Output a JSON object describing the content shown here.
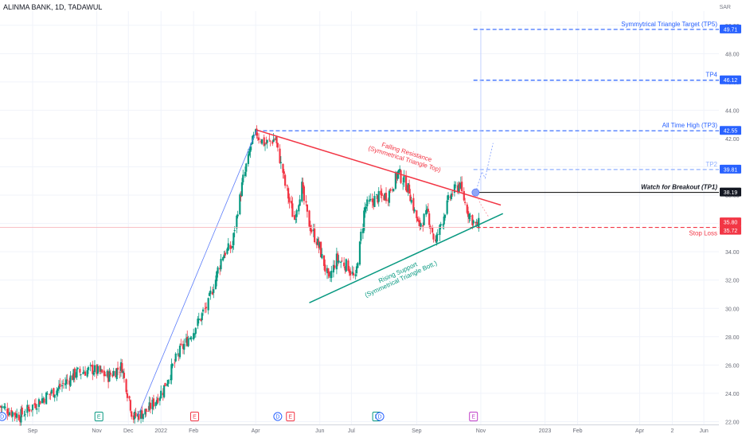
{
  "header": {
    "symbol": "ALINMA BANK, 1D, TADAWUL",
    "currency": "SAR"
  },
  "chart_data": {
    "type": "candlestick",
    "symbol": "ALINMA BANK",
    "interval": "1D",
    "exchange": "TADAWUL",
    "currency": "SAR",
    "y_axis": {
      "ylim": [
        21.8,
        51.0
      ],
      "ticks": [
        "22.00",
        "24.00",
        "26.00",
        "28.00",
        "30.00",
        "32.00",
        "34.00",
        "36.00",
        "38.00",
        "40.00",
        "42.00",
        "44.00",
        "46.00",
        "48.00",
        "50.00"
      ]
    },
    "x_axis": {
      "ticks": [
        {
          "label": "Sep",
          "date": "2021-09-01"
        },
        {
          "label": "Nov",
          "date": "2021-11-01"
        },
        {
          "label": "Dec",
          "date": "2021-12-01"
        },
        {
          "label": "2022",
          "date": "2022-01-01"
        },
        {
          "label": "Feb",
          "date": "2022-02-01"
        },
        {
          "label": "Apr",
          "date": "2022-04-01"
        },
        {
          "label": "Jun",
          "date": "2022-06-01"
        },
        {
          "label": "Jul",
          "date": "2022-07-01"
        },
        {
          "label": "Sep",
          "date": "2022-09-01"
        },
        {
          "label": "Nov",
          "date": "2022-11-01"
        },
        {
          "label": "2023",
          "date": "2023-01-01"
        },
        {
          "label": "Feb",
          "date": "2023-02-01"
        },
        {
          "label": "Apr",
          "date": "2023-04-01"
        },
        {
          "label": "2",
          "date": "2023-05-02"
        },
        {
          "label": "Jun",
          "date": "2023-06-01"
        }
      ]
    },
    "price_path": [
      [
        "2021-08-01",
        23.1
      ],
      [
        "2021-08-20",
        22.4
      ],
      [
        "2021-09-10",
        23.6
      ],
      [
        "2021-09-25",
        24.3
      ],
      [
        "2021-10-12",
        25.4
      ],
      [
        "2021-10-28",
        25.7
      ],
      [
        "2021-11-12",
        25.2
      ],
      [
        "2021-11-25",
        25.9
      ],
      [
        "2021-12-06",
        22.3
      ],
      [
        "2021-12-20",
        22.8
      ],
      [
        "2022-01-03",
        24.2
      ],
      [
        "2022-01-18",
        26.8
      ],
      [
        "2022-02-01",
        28.4
      ],
      [
        "2022-02-15",
        30.3
      ],
      [
        "2022-03-01",
        33.8
      ],
      [
        "2022-03-10",
        34.4
      ],
      [
        "2022-03-18",
        38.2
      ],
      [
        "2022-03-28",
        41.5
      ],
      [
        "2022-04-02",
        42.4
      ],
      [
        "2022-04-10",
        41.6
      ],
      [
        "2022-04-20",
        42.0
      ],
      [
        "2022-05-01",
        38.3
      ],
      [
        "2022-05-08",
        36.3
      ],
      [
        "2022-05-15",
        38.6
      ],
      [
        "2022-05-22",
        36.0
      ],
      [
        "2022-06-01",
        34.3
      ],
      [
        "2022-06-10",
        31.9
      ],
      [
        "2022-06-17",
        33.5
      ],
      [
        "2022-06-28",
        33.0
      ],
      [
        "2022-07-05",
        32.0
      ],
      [
        "2022-07-14",
        37.1
      ],
      [
        "2022-07-25",
        37.8
      ],
      [
        "2022-08-05",
        38.0
      ],
      [
        "2022-08-15",
        39.6
      ],
      [
        "2022-08-25",
        38.4
      ],
      [
        "2022-09-03",
        35.8
      ],
      [
        "2022-09-12",
        36.7
      ],
      [
        "2022-09-19",
        34.6
      ],
      [
        "2022-09-26",
        36.3
      ],
      [
        "2022-10-03",
        37.9
      ],
      [
        "2022-10-12",
        38.8
      ],
      [
        "2022-10-20",
        36.8
      ],
      [
        "2022-10-28",
        35.8
      ],
      [
        "2022-11-01",
        36.0
      ]
    ],
    "levels": [
      {
        "label": "Symmytrical Triangle Target (TP5)",
        "price": 49.71,
        "price_label": "49.71",
        "color": "#2962ff",
        "style": "dashed"
      },
      {
        "label": "TP4",
        "price": 46.12,
        "price_label": "46.12",
        "color": "#2962ff",
        "style": "dashed"
      },
      {
        "label": "All Time High (TP3)",
        "price": 42.55,
        "price_label": "42.55",
        "color": "#2962ff",
        "style": "dashed"
      },
      {
        "label": "TP2",
        "price": 39.81,
        "price_label": "39.81",
        "color": "#90b0ff",
        "style": "dashed"
      },
      {
        "label": "Watch for Breakout (TP1)",
        "price": 38.19,
        "price_label": "38.19",
        "color": "#000000",
        "style": "solid"
      },
      {
        "label": "Stop Loss",
        "price": 35.72,
        "price_label": "35.72",
        "color": "#f23645",
        "style": "dashed"
      }
    ],
    "last_price": {
      "value": 35.8,
      "label": "35.80"
    },
    "trendlines": [
      {
        "name": "Falling Resistance",
        "label_lines": [
          "Falling Resistance",
          "(Symmetrical Triangle Top)"
        ],
        "color": "#f23645",
        "from": [
          "2022-04-02",
          42.6
        ],
        "to": [
          "2022-11-20",
          37.3
        ]
      },
      {
        "name": "Rising Support",
        "label_lines": [
          "Rising Support",
          "(Symmetrical Triangle Bott.)"
        ],
        "color": "#089981",
        "from": [
          "2022-05-22",
          30.4
        ],
        "to": [
          "2022-11-22",
          36.7
        ]
      }
    ],
    "markers": [
      "D",
      "E",
      "E",
      "D",
      "E",
      "E",
      "D",
      "E"
    ],
    "colors": {
      "up": "#089981",
      "down": "#f23645",
      "blue": "#2962ff",
      "grid": "#f0f3fa"
    }
  }
}
